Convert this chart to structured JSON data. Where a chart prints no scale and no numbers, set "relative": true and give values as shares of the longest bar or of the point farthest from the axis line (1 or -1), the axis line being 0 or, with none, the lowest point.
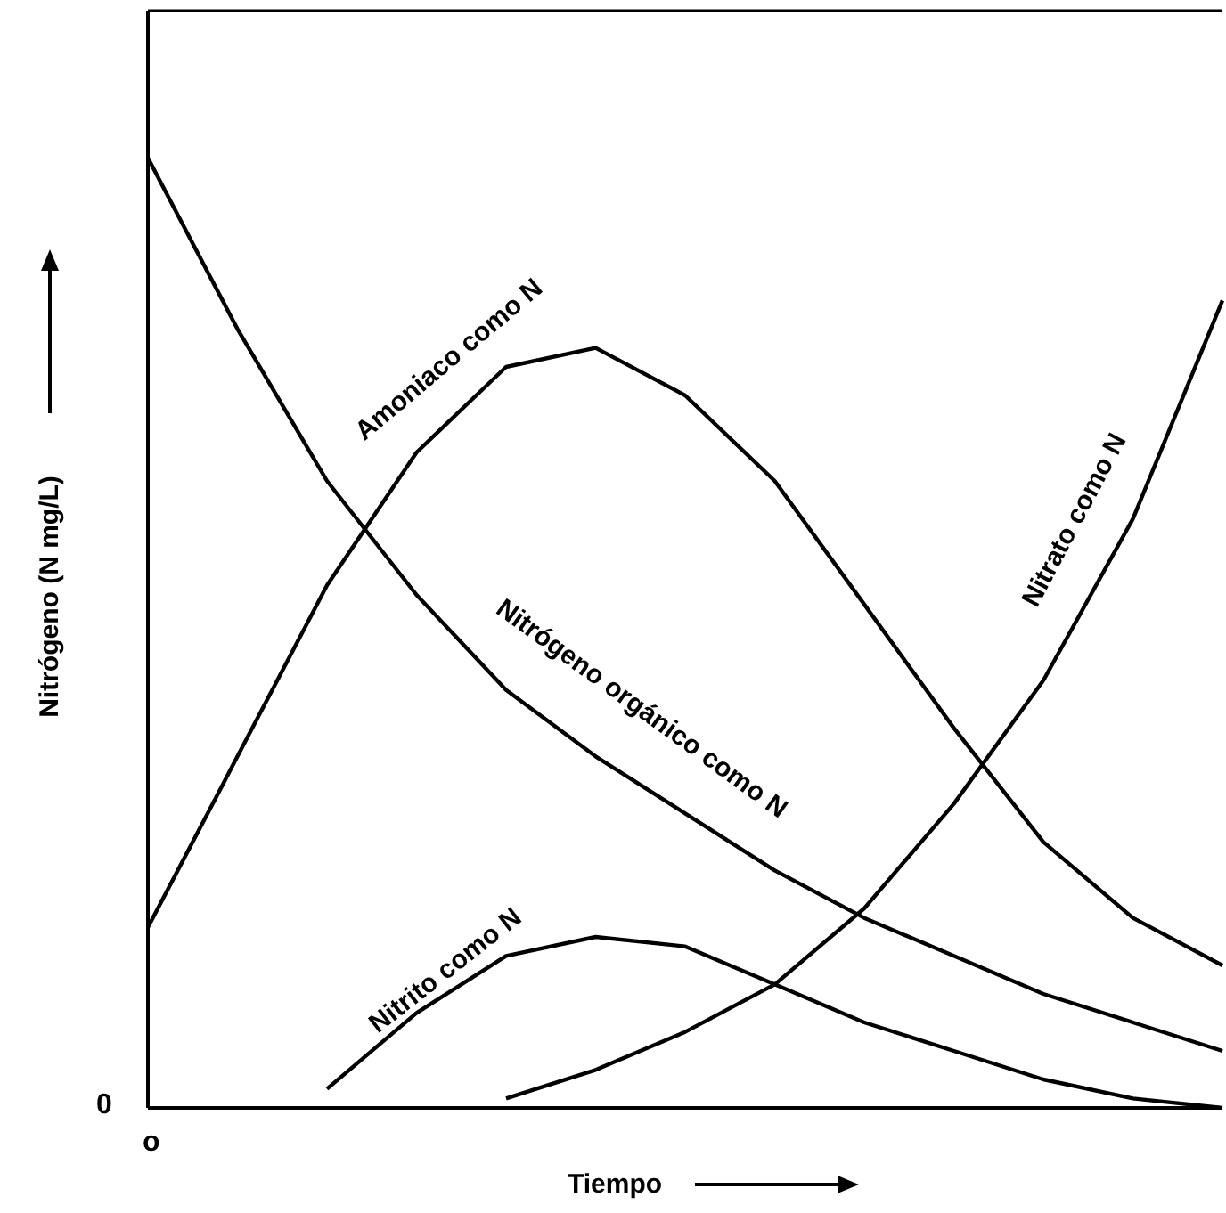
{
  "chart_data": {
    "type": "line",
    "relative": true,
    "xlabel": "Tiempo",
    "ylabel": "Nitrógeno (N mg/L)",
    "annotations": [
      "0",
      "o"
    ],
    "legend": false,
    "grid": false,
    "marker": "none",
    "line_style": "solid",
    "categories": [
      null,
      null,
      null,
      null,
      null,
      null,
      null,
      null,
      null,
      null,
      null,
      null,
      null
    ],
    "series": [
      {
        "name": "Amoniaco como N",
        "color": "#000000",
        "values": [
          0.19,
          0.37,
          0.55,
          0.69,
          0.78,
          0.8,
          0.75,
          0.66,
          0.53,
          0.4,
          0.28,
          0.2,
          0.15
        ]
      },
      {
        "name": "Nitrógeno orgánico como N",
        "color": "#000000",
        "values": [
          1,
          0.82,
          0.66,
          0.54,
          0.44,
          0.37,
          0.31,
          0.25,
          0.2,
          0.16,
          0.12,
          0.09,
          0.06
        ]
      },
      {
        "name": "Nitrato como N",
        "color": "#000000",
        "values": [
          null,
          null,
          null,
          null,
          0.01,
          0.04,
          0.08,
          0.13,
          0.21,
          0.32,
          0.45,
          0.62,
          0.85
        ]
      },
      {
        "name": "Nitrito como N",
        "color": "#000000",
        "values": [
          null,
          null,
          0.02,
          0.1,
          0.16,
          0.18,
          0.17,
          0.13,
          0.09,
          0.06,
          0.03,
          0.01,
          0
        ]
      }
    ]
  }
}
